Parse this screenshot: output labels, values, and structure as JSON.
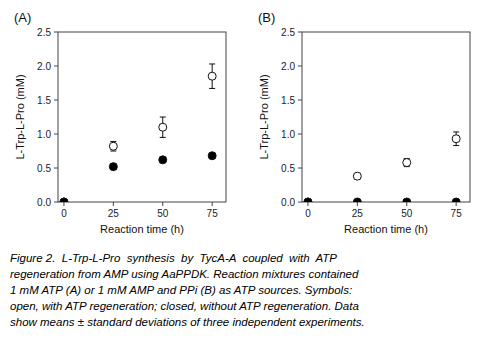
{
  "chart_data": [
    {
      "type": "scatter",
      "title": "(A)",
      "xlabel": "Reaction time (h)",
      "ylabel": "L-Trp-L-Pro (mM)",
      "x": [
        0,
        25,
        50,
        75
      ],
      "series": [
        {
          "color": "white",
          "marker": "circle",
          "values": [
            0,
            0.82,
            1.1,
            1.85
          ],
          "errors": [
            0,
            0.07,
            0.15,
            0.18
          ]
        },
        {
          "color": "black",
          "marker": "circle",
          "values": [
            0,
            0.52,
            0.62,
            0.68
          ],
          "errors": [
            0,
            0.04,
            0.04,
            0.04
          ]
        }
      ],
      "xlim": [
        -3,
        82
      ],
      "xticks": [
        0,
        25,
        50,
        75
      ],
      "ylim": [
        0,
        2.5
      ],
      "yticks": [
        {
          "value": 0,
          "label": "0.0"
        },
        0.5,
        {
          "value": 1.0,
          "label": "1.0"
        },
        1.5,
        {
          "value": 2.0,
          "label": "2.0"
        },
        2.5
      ],
      "grid": false
    },
    {
      "type": "scatter",
      "title": "(B)",
      "xlabel": "Reaction time (h)",
      "ylabel": "L-Trp-L-Pro (mM)",
      "x": [
        0,
        25,
        50,
        75
      ],
      "series": [
        {
          "color": "white",
          "marker": "circle",
          "values": [
            0,
            0.38,
            0.58,
            0.93
          ],
          "errors": [
            0,
            0.04,
            0.06,
            0.1
          ]
        },
        {
          "color": "black",
          "marker": "circle",
          "values": [
            0,
            0.0,
            0.0,
            0.0
          ],
          "errors": [
            0,
            0.0,
            0.0,
            0.0
          ]
        }
      ],
      "xlim": [
        -3,
        82
      ],
      "xticks": [
        0,
        25,
        50,
        75
      ],
      "ylim": [
        0,
        2.5
      ],
      "yticks": [
        {
          "value": 0,
          "label": "0.0"
        },
        0.5,
        {
          "value": 1.0,
          "label": "1.0"
        },
        1.5,
        {
          "value": 2.0,
          "label": "2.0"
        },
        2.5
      ],
      "grid": false
    }
  ],
  "annotations": [
    "Figure 2.  L-Trp-L-Pro  synthesis  by  TycA-A  coupled  with  ATP",
    "regeneration from AMP using AaPPDK. Reaction mixtures contained",
    "1 mM ATP (A) or 1 mM AMP and PPi (B) as ATP sources. Symbols:",
    "open, with ATP regeneration; closed, without ATP regeneration. Data",
    "show means ± standard deviations of three independent experiments."
  ]
}
